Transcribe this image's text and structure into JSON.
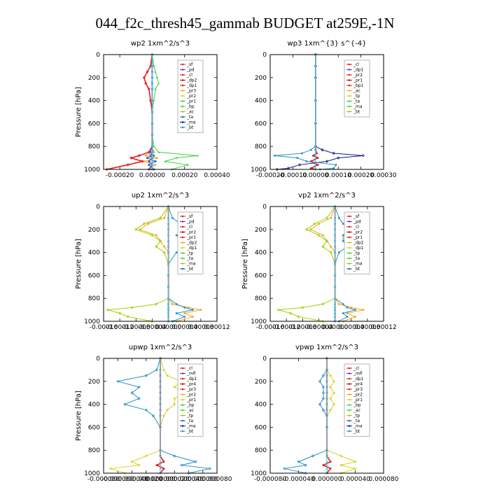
{
  "title": "044_f2c_thresh45_gammab  BUDGET at259E,-1N",
  "colors": {
    "red": "#e11d1d",
    "purple": "#7b2fb5",
    "orange": "#f5a623",
    "yellow": "#ddd11e",
    "green": "#3fd13f",
    "lime": "#9ad400",
    "blue": "#1f5fd6",
    "navy": "#14148c",
    "teal": "#2a8fc4",
    "cyan": "#3cc6e8",
    "darkred": "#b01010"
  },
  "chart_data": [
    {
      "type": "line",
      "title": "wp2   1xm^2/s^3",
      "ylabel": "Pressure [hPa]",
      "xlim": [
        -0.0003,
        0.0004
      ],
      "ylim": [
        1000,
        0
      ],
      "xticks": [
        -0.0002,
        0.0,
        0.0002,
        0.0004
      ],
      "xtick_labels": [
        "-0.00020",
        "0.00000",
        "0.00020",
        "0.00040"
      ],
      "yticks": [
        0,
        200,
        400,
        600,
        800,
        1000
      ],
      "ytick_labels": [
        "0",
        "200",
        "400",
        "600",
        "800",
        "1000"
      ],
      "legend": [
        "_sf",
        "_pd",
        "_cl",
        "_dp2",
        "_dp1",
        "_pr3",
        "_pr2",
        "_pr1",
        "_bp",
        "_ac",
        "_ta",
        "_ma",
        "_bt"
      ],
      "pressure": [
        0,
        100,
        150,
        200,
        250,
        300,
        400,
        500,
        600,
        700,
        800,
        850,
        880,
        900,
        930,
        960,
        1000
      ],
      "series": [
        {
          "name": "_pd",
          "color": "purple",
          "values": [
            0,
            0,
            0,
            0,
            0,
            0,
            0,
            0,
            0,
            0,
            0,
            5e-06,
            -1e-05,
            0,
            -2e-05,
            0,
            -2e-05
          ]
        },
        {
          "name": "_dp1",
          "color": "red",
          "values": [
            0,
            -1e-05,
            -3e-05,
            -5e-05,
            -4e-05,
            -2e-05,
            -1e-05,
            0,
            0,
            0,
            0,
            -2e-05,
            -8e-05,
            -0.00013,
            -6e-05,
            -0.00015,
            -0.00028
          ]
        },
        {
          "name": "_pr3",
          "color": "orange",
          "values": [
            0,
            0,
            0,
            0,
            0,
            0,
            0,
            0,
            0,
            0,
            0,
            1e-05,
            -4e-05,
            3e-05,
            -5e-05,
            2e-05,
            -1e-05
          ]
        },
        {
          "name": "_pr1",
          "color": "green",
          "values": [
            0,
            1e-05,
            2e-05,
            3e-05,
            4e-05,
            2e-05,
            1e-05,
            0,
            0,
            0,
            1e-05,
            4e-05,
            0.00028,
            0.00015,
            8e-05,
            0.00022,
            0.00012
          ]
        },
        {
          "name": "_ta",
          "color": "blue",
          "values": [
            0,
            0,
            0,
            0,
            0,
            0,
            0,
            0,
            0,
            0,
            0,
            -1e-05,
            1e-05,
            -3e-05,
            2e-05,
            -2e-05,
            1e-05
          ]
        },
        {
          "name": "_bt",
          "color": "cyan",
          "values": [
            0,
            0,
            0,
            0,
            0,
            0,
            0,
            0,
            0,
            0,
            0,
            0,
            0,
            0,
            0,
            0,
            0
          ]
        }
      ]
    },
    {
      "type": "line",
      "title": "wp3   1xm^{3} s^{-4}",
      "ylabel": "",
      "xlim": [
        -0.0002,
        0.0003
      ],
      "ylim": [
        1000,
        0
      ],
      "xticks": [
        -0.0002,
        -0.0001,
        0.0,
        0.0001,
        0.0002,
        0.0003
      ],
      "xtick_labels": [
        "-0.00020",
        "-0.00010",
        "0.00000",
        "0.00010",
        "0.00020",
        "0.00030"
      ],
      "yticks": [
        0,
        200,
        400,
        600,
        800,
        1000
      ],
      "ytick_labels": [
        "0",
        "200",
        "400",
        "600",
        "800",
        "1000"
      ],
      "legend": [
        "_cl",
        "_dp1",
        "_pr2",
        "_pr1",
        "_bp1",
        "_ac",
        "_tp",
        "_ta",
        "_ma",
        "_bt"
      ],
      "pressure": [
        0,
        100,
        200,
        400,
        600,
        800,
        830,
        860,
        880,
        900,
        930,
        960,
        990,
        1000
      ],
      "series": [
        {
          "name": "_dp1",
          "color": "red",
          "values": [
            0,
            0,
            0,
            0,
            0,
            0,
            0,
            5e-06,
            -1e-05,
            1e-05,
            -2e-05,
            1e-05,
            -2e-05,
            0
          ]
        },
        {
          "name": "_tp",
          "color": "navy",
          "values": [
            0,
            0,
            0,
            0,
            0,
            0,
            3e-05,
            8e-05,
            0.00021,
            0.0001,
            5e-05,
            -7e-05,
            -0.00012,
            -0.00017
          ]
        },
        {
          "name": "_ta",
          "color": "teal",
          "values": [
            0,
            0,
            0,
            0,
            0,
            0,
            -2e-05,
            -6e-05,
            -0.00018,
            -8e-05,
            -4e-05,
            9e-05,
            8e-05,
            2e-05
          ]
        },
        {
          "name": "_bt",
          "color": "cyan",
          "values": [
            0,
            0,
            0,
            0,
            0,
            0,
            0,
            0,
            0,
            0,
            0,
            0,
            0,
            0
          ]
        }
      ]
    },
    {
      "type": "line",
      "title": "up2   1xm^2/s^3",
      "ylabel": "Pressure [hPa]",
      "xlim": [
        -0.00016,
        0.00012
      ],
      "ylim": [
        1000,
        0
      ],
      "xticks": [
        -0.00016,
        -0.00012,
        -8e-05,
        -4e-05,
        0.0,
        4e-05,
        8e-05,
        0.00012
      ],
      "xtick_labels": [
        "-0.00016",
        "-0.00012",
        "-0.00008",
        "-0.00004",
        "0.00000",
        "0.00004",
        "0.00008",
        "0.00012"
      ],
      "yticks": [
        0,
        200,
        400,
        600,
        800,
        1000
      ],
      "ytick_labels": [
        "0",
        "200",
        "400",
        "600",
        "800",
        "1000"
      ],
      "legend": [
        "_sf",
        "_pd",
        "_cl",
        "_pr2",
        "_pr1",
        "_dp2",
        "_dp1",
        "_tp",
        "_ta",
        "_ma",
        "_bt"
      ],
      "pressure": [
        0,
        100,
        150,
        200,
        250,
        300,
        350,
        400,
        500,
        600,
        700,
        800,
        850,
        880,
        900,
        930,
        960,
        1000
      ],
      "series": [
        {
          "name": "_pr2",
          "color": "orange",
          "values": [
            0,
            -1e-05,
            -5e-05,
            -7e-05,
            -3e-05,
            -2e-05,
            -1e-05,
            0,
            0,
            0,
            0,
            0,
            1e-05,
            5e-05,
            8e-05,
            4e-05,
            6e-05,
            2e-05
          ]
        },
        {
          "name": "_pr1",
          "color": "lime",
          "values": [
            0,
            -2e-05,
            -6e-05,
            -8e-05,
            -4e-05,
            -2e-05,
            -3e-05,
            -1e-05,
            0,
            0,
            0,
            0,
            -3e-05,
            -9e-05,
            -0.00015,
            -0.00012,
            -0.0001,
            -4e-05
          ]
        },
        {
          "name": "_tp",
          "color": "teal",
          "values": [
            0,
            1e-05,
            3e-05,
            5e-05,
            2e-05,
            3e-05,
            4e-05,
            2e-05,
            0,
            0,
            0,
            0,
            2e-05,
            4e-05,
            6e-05,
            2e-05,
            4e-05,
            1e-05
          ]
        },
        {
          "name": "_dp1",
          "color": "red",
          "values": [
            0,
            0,
            0,
            0,
            0,
            0,
            0,
            0,
            0,
            0,
            0,
            0,
            0,
            0,
            0,
            0,
            0,
            0
          ]
        },
        {
          "name": "_bt",
          "color": "cyan",
          "values": [
            0,
            0,
            0,
            0,
            0,
            0,
            0,
            0,
            0,
            0,
            0,
            0,
            0,
            0,
            0,
            0,
            0,
            0
          ]
        }
      ]
    },
    {
      "type": "line",
      "title": "vp2   1xm^2/s^3",
      "ylabel": "Pressure [hPa]",
      "xlim": [
        -0.00016,
        0.00012
      ],
      "ylim": [
        1000,
        0
      ],
      "xticks": [
        -0.00016,
        -0.00012,
        -8e-05,
        -4e-05,
        0.0,
        4e-05,
        8e-05,
        0.00012
      ],
      "xtick_labels": [
        "-0.00016",
        "-0.00012",
        "-0.00008",
        "-0.00004",
        "0.00000",
        "0.00004",
        "0.00008",
        "0.00012"
      ],
      "yticks": [
        0,
        200,
        400,
        600,
        800,
        1000
      ],
      "ytick_labels": [
        "0",
        "200",
        "400",
        "600",
        "800",
        "1000"
      ],
      "legend": [
        "_sf",
        "_pd",
        "_cl",
        "_pr2",
        "_pr1",
        "_dp2",
        "_dp1",
        "_tp",
        "_ta",
        "_ma",
        "_bt"
      ],
      "pressure": [
        0,
        100,
        150,
        200,
        250,
        300,
        350,
        400,
        500,
        600,
        700,
        800,
        850,
        880,
        900,
        930,
        960,
        1000
      ],
      "series": [
        {
          "name": "_pr2",
          "color": "orange",
          "values": [
            0,
            -1e-05,
            -4e-05,
            -6e-05,
            -3e-05,
            -2e-05,
            -1e-05,
            0,
            0,
            0,
            0,
            0,
            1e-05,
            4e-05,
            7e-05,
            3e-05,
            5e-05,
            2e-05
          ]
        },
        {
          "name": "_pr1",
          "color": "lime",
          "values": [
            0,
            -2e-05,
            -5e-05,
            -7e-05,
            -4e-05,
            -2e-05,
            -3e-05,
            -1e-05,
            0,
            0,
            0,
            0,
            -3e-05,
            -8e-05,
            -0.00014,
            -0.00011,
            -9e-05,
            -3e-05
          ]
        },
        {
          "name": "_tp",
          "color": "teal",
          "values": [
            0,
            1e-05,
            2e-05,
            4e-05,
            2e-05,
            2e-05,
            3e-05,
            1e-05,
            0,
            0,
            0,
            0,
            2e-05,
            3e-05,
            5e-05,
            2e-05,
            3e-05,
            1e-05
          ]
        },
        {
          "name": "_dp1",
          "color": "red",
          "values": [
            0,
            0,
            0,
            0,
            0,
            0,
            0,
            0,
            0,
            0,
            0,
            0,
            0,
            0,
            0,
            0,
            0,
            0
          ]
        },
        {
          "name": "_bt",
          "color": "cyan",
          "values": [
            0,
            0,
            0,
            0,
            0,
            0,
            0,
            0,
            0,
            0,
            0,
            0,
            0,
            0,
            0,
            0,
            0,
            0
          ]
        }
      ]
    },
    {
      "type": "line",
      "title": "upwp   1xm^2/s^3",
      "ylabel": "Pressure [hPa]",
      "xlim": [
        -8e-05,
        8e-05
      ],
      "ylim": [
        1000,
        0
      ],
      "xticks": [
        -8e-05,
        -6e-05,
        -4e-05,
        -2e-05,
        0.0,
        2e-05,
        4e-05,
        6e-05,
        8e-05
      ],
      "xtick_labels": [
        "-0.000080",
        "-0.000060",
        "-0.000040",
        "-0.000020",
        "0.000000",
        "0.000020",
        "0.000040",
        "0.000060",
        "0.000080"
      ],
      "yticks": [
        0,
        200,
        400,
        600,
        800,
        1000
      ],
      "ytick_labels": [
        "0",
        "200",
        "400",
        "600",
        "800",
        "1000"
      ],
      "legend": [
        "_cl",
        "_mfl",
        "_dp1",
        "_pr4",
        "_pr3",
        "_pr2",
        "_pr1",
        "_bp",
        "_ac",
        "_tp",
        "_ta",
        "_ma",
        "_bt"
      ],
      "pressure": [
        0,
        100,
        150,
        200,
        250,
        300,
        350,
        400,
        450,
        500,
        600,
        800,
        850,
        900,
        930,
        960,
        1000
      ],
      "series": [
        {
          "name": "_pr1",
          "color": "yellow",
          "values": [
            0,
            5e-06,
            1e-05,
            3e-05,
            2e-05,
            3.5e-05,
            2e-05,
            2e-05,
            1e-05,
            5e-06,
            0,
            0,
            -2e-05,
            -4e-05,
            -3e-05,
            -7e-05,
            -5e-05
          ]
        },
        {
          "name": "_tp",
          "color": "teal",
          "values": [
            0,
            -5e-06,
            -2e-05,
            -6e-05,
            -3e-05,
            -4e-05,
            -3e-05,
            -5e-05,
            -2e-05,
            -1e-05,
            0,
            0,
            2e-05,
            5e-05,
            3e-05,
            7e-05,
            4e-05
          ]
        },
        {
          "name": "_dp1",
          "color": "red",
          "values": [
            0,
            0,
            0,
            0,
            0,
            0,
            0,
            0,
            0,
            0,
            0,
            0,
            0,
            5e-06,
            -5e-06,
            5e-06,
            0
          ]
        },
        {
          "name": "_bt",
          "color": "cyan",
          "values": [
            0,
            0,
            0,
            0,
            0,
            0,
            0,
            0,
            0,
            0,
            0,
            0,
            0,
            0,
            0,
            0,
            0
          ]
        }
      ]
    },
    {
      "type": "line",
      "title": "vpwp   1xm^2/s^3",
      "ylabel": "",
      "xlim": [
        -8e-05,
        8e-05
      ],
      "ylim": [
        1000,
        0
      ],
      "xticks": [
        -8e-05,
        -4e-05,
        0.0,
        4e-05,
        8e-05
      ],
      "xtick_labels": [
        "-0.000080",
        "-0.000040",
        "0.000000",
        "0.000040",
        "0.000080"
      ],
      "yticks": [
        0,
        200,
        400,
        600,
        800,
        1000
      ],
      "ytick_labels": [
        "0",
        "200",
        "400",
        "600",
        "800",
        "1000"
      ],
      "legend": [
        "_cl",
        "_mfl",
        "_dp1",
        "_pr4",
        "_pr3",
        "_pr2",
        "_pr1",
        "_bp",
        "_ac",
        "_tp",
        "_ta",
        "_ma",
        "_bt"
      ],
      "pressure": [
        0,
        100,
        150,
        200,
        250,
        300,
        350,
        400,
        450,
        500,
        600,
        800,
        850,
        900,
        930,
        960,
        1000
      ],
      "series": [
        {
          "name": "_pr1",
          "color": "yellow",
          "values": [
            0,
            0,
            5e-06,
            1e-05,
            5e-06,
            1e-05,
            5e-06,
            1e-05,
            5e-06,
            0,
            0,
            0,
            2e-05,
            4e-05,
            2e-05,
            4e-05,
            2e-05
          ]
        },
        {
          "name": "_tp",
          "color": "teal",
          "values": [
            0,
            0,
            -5e-06,
            -1e-05,
            -5e-06,
            -5e-06,
            -5e-06,
            -1e-05,
            -5e-06,
            0,
            0,
            0,
            -2e-05,
            -4e-05,
            -3e-05,
            -6e-05,
            -3e-05
          ]
        },
        {
          "name": "_dp1",
          "color": "red",
          "values": [
            0,
            0,
            0,
            0,
            0,
            0,
            0,
            0,
            0,
            0,
            0,
            0,
            0,
            5e-06,
            -5e-06,
            5e-06,
            0
          ]
        },
        {
          "name": "_bt",
          "color": "cyan",
          "values": [
            0,
            0,
            0,
            0,
            0,
            0,
            0,
            0,
            0,
            0,
            0,
            0,
            0,
            0,
            0,
            0,
            0
          ]
        }
      ]
    }
  ]
}
